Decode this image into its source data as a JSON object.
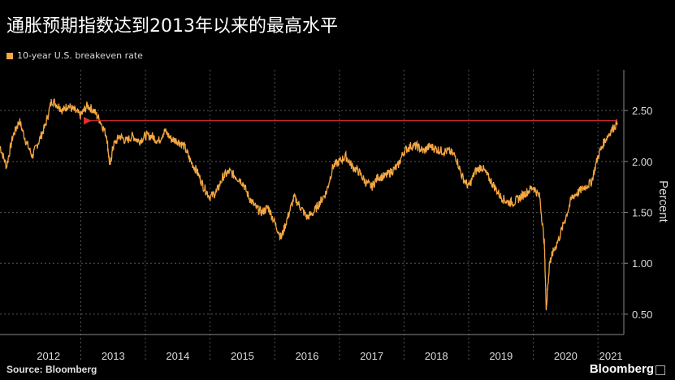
{
  "header": {
    "title": "通胀预期指数达到2013年以来的最高水平"
  },
  "legend": {
    "label": "10-year U.S. breakeven rate",
    "color": "#f5a742"
  },
  "footer": {
    "source": "Source: Bloomberg",
    "brand": "Bloomberg"
  },
  "chart_data": {
    "type": "line",
    "title": "通胀预期指数达到2013年以来的最高水平",
    "ylabel": "Percent",
    "ylim": [
      0.3,
      2.9
    ],
    "yticks": [
      0.5,
      1.0,
      1.5,
      2.0,
      2.5
    ],
    "ytick_labels": [
      "0.50",
      "1.00",
      "1.50",
      "2.00",
      "2.50"
    ],
    "xlim": [
      2011.75,
      2021.4
    ],
    "x_labels": [
      "2012",
      "2013",
      "2014",
      "2015",
      "2016",
      "2017",
      "2018",
      "2019",
      "2020",
      "2021"
    ],
    "grid": true,
    "reference_arrow": {
      "y": 2.4,
      "x_start": 2013.15,
      "x_end": 2021.3,
      "color": "#e03030"
    },
    "series": [
      {
        "name": "10-year U.S. breakeven rate",
        "color": "#f5a742",
        "x": [
          2011.75,
          2011.85,
          2011.95,
          2012.05,
          2012.15,
          2012.25,
          2012.35,
          2012.45,
          2012.55,
          2012.65,
          2012.72,
          2012.8,
          2012.9,
          2013.0,
          2013.1,
          2013.2,
          2013.3,
          2013.4,
          2013.45,
          2013.5,
          2013.6,
          2013.7,
          2013.8,
          2013.9,
          2014.0,
          2014.1,
          2014.2,
          2014.3,
          2014.4,
          2014.5,
          2014.6,
          2014.7,
          2014.8,
          2014.9,
          2015.0,
          2015.1,
          2015.2,
          2015.3,
          2015.4,
          2015.5,
          2015.6,
          2015.7,
          2015.8,
          2015.9,
          2016.0,
          2016.1,
          2016.2,
          2016.3,
          2016.4,
          2016.5,
          2016.6,
          2016.7,
          2016.8,
          2016.9,
          2017.0,
          2017.1,
          2017.2,
          2017.3,
          2017.4,
          2017.5,
          2017.6,
          2017.7,
          2017.8,
          2017.9,
          2018.0,
          2018.1,
          2018.2,
          2018.3,
          2018.4,
          2018.5,
          2018.6,
          2018.7,
          2018.8,
          2018.9,
          2019.0,
          2019.1,
          2019.2,
          2019.3,
          2019.4,
          2019.5,
          2019.6,
          2019.7,
          2019.8,
          2019.9,
          2020.0,
          2020.1,
          2020.17,
          2020.2,
          2020.25,
          2020.3,
          2020.4,
          2020.5,
          2020.6,
          2020.7,
          2020.8,
          2020.9,
          2021.0,
          2021.1,
          2021.2,
          2021.3
        ],
        "values": [
          2.15,
          1.95,
          2.25,
          2.4,
          2.2,
          2.05,
          2.2,
          2.35,
          2.6,
          2.55,
          2.5,
          2.55,
          2.5,
          2.45,
          2.55,
          2.5,
          2.4,
          2.25,
          1.95,
          2.15,
          2.25,
          2.2,
          2.25,
          2.2,
          2.25,
          2.25,
          2.2,
          2.3,
          2.22,
          2.2,
          2.15,
          2.0,
          1.9,
          1.75,
          1.65,
          1.7,
          1.85,
          1.9,
          1.85,
          1.8,
          1.65,
          1.55,
          1.5,
          1.55,
          1.4,
          1.25,
          1.45,
          1.65,
          1.55,
          1.45,
          1.5,
          1.6,
          1.7,
          1.95,
          2.0,
          2.05,
          1.95,
          1.9,
          1.8,
          1.75,
          1.85,
          1.85,
          1.9,
          1.95,
          2.1,
          2.15,
          2.15,
          2.1,
          2.15,
          2.12,
          2.1,
          2.1,
          2.05,
          1.85,
          1.75,
          1.9,
          1.95,
          1.85,
          1.75,
          1.65,
          1.6,
          1.6,
          1.65,
          1.7,
          1.75,
          1.65,
          1.2,
          0.55,
          1.0,
          1.1,
          1.25,
          1.45,
          1.65,
          1.7,
          1.75,
          1.8,
          2.05,
          2.2,
          2.3,
          2.38
        ]
      }
    ]
  }
}
